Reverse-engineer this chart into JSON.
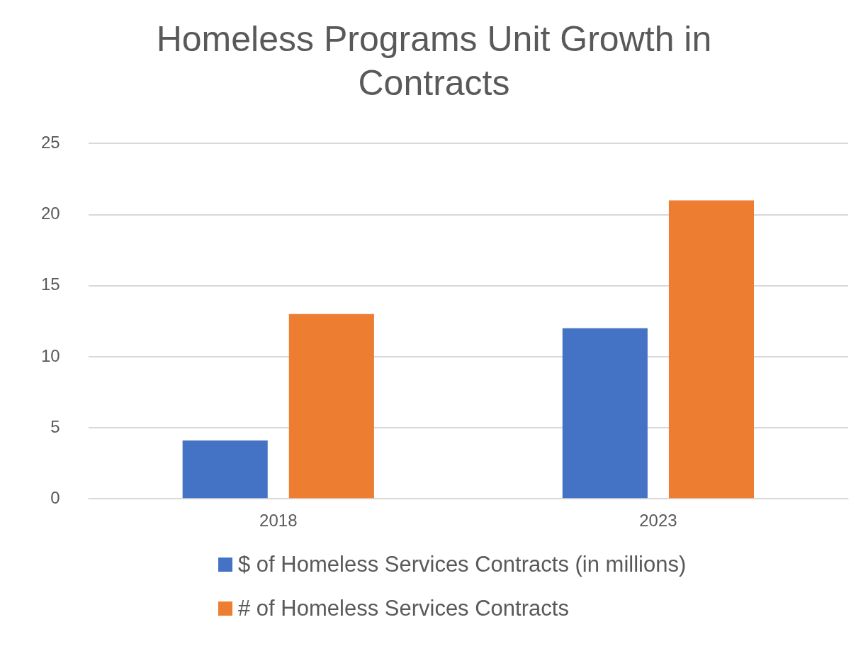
{
  "chart_data": {
    "type": "bar",
    "title": "Homeless Programs Unit Growth in Contracts",
    "categories": [
      "2018",
      "2023"
    ],
    "series": [
      {
        "name": "$ of Homeless Services Contracts (in millions)",
        "color": "#4472c4",
        "values": [
          4.1,
          12
        ]
      },
      {
        "name": "# of Homeless Services Contracts",
        "color": "#ed7d31",
        "values": [
          13,
          21
        ]
      }
    ],
    "ylim": [
      0,
      25
    ],
    "yticks": [
      0,
      5,
      10,
      15,
      20,
      25
    ],
    "grid": "y",
    "legend": "bottom"
  }
}
